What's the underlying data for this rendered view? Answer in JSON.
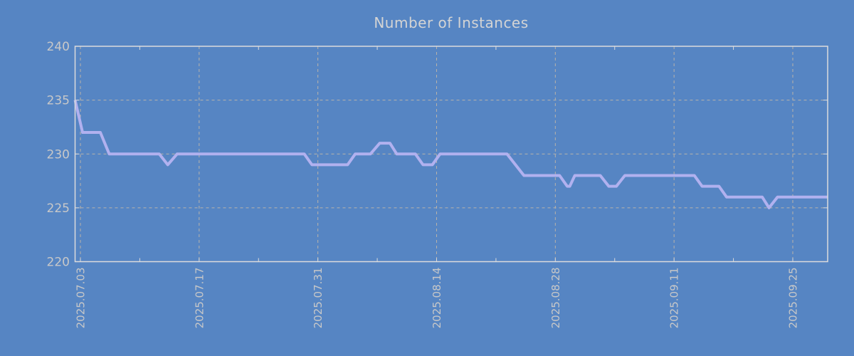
{
  "title": "Number of Instances",
  "colors": {
    "background": "#5685c3",
    "line": "#b1b1ef",
    "grid": "#b9b3aa",
    "frame": "#dcdcdc",
    "tick_label": "#c8c8c8",
    "title_text": "#d4d4d4"
  },
  "chart_data": {
    "type": "line",
    "title": "Number of Instances",
    "xlabel": "",
    "ylabel": "",
    "ylim": [
      220,
      240
    ],
    "y_ticks": [
      220,
      225,
      230,
      235,
      240
    ],
    "y_gridlines": [
      225,
      230,
      235
    ],
    "grid": "dashed",
    "legend": "none",
    "x_ticks": [
      {
        "label": "2025.07.03",
        "day": 0
      },
      {
        "label": "2025.07.17",
        "day": 14
      },
      {
        "label": "2025.07.31",
        "day": 28
      },
      {
        "label": "2025.08.14",
        "day": 42
      },
      {
        "label": "2025.08.28",
        "day": 56
      },
      {
        "label": "2025.09.11",
        "day": 70
      },
      {
        "label": "2025.09.25",
        "day": 84
      }
    ],
    "minor_tick_days": [
      7,
      21,
      35,
      49,
      63,
      77
    ],
    "x_range_days": [
      -0.63,
      88.1
    ],
    "series": [
      {
        "name": "instances",
        "points": [
          [
            -0.63,
            235
          ],
          [
            0.25,
            232
          ],
          [
            2.35,
            232
          ],
          [
            3.4,
            230
          ],
          [
            9.3,
            230
          ],
          [
            10.3,
            229
          ],
          [
            11.4,
            230
          ],
          [
            26.4,
            230
          ],
          [
            27.3,
            229
          ],
          [
            31.5,
            229
          ],
          [
            32.4,
            230
          ],
          [
            34.2,
            230
          ],
          [
            35.3,
            231
          ],
          [
            36.5,
            231
          ],
          [
            37.3,
            230
          ],
          [
            39.5,
            230
          ],
          [
            40.4,
            229
          ],
          [
            41.5,
            229
          ],
          [
            42.4,
            230
          ],
          [
            50.3,
            230
          ],
          [
            52.3,
            228
          ],
          [
            56.5,
            228
          ],
          [
            57.4,
            227
          ],
          [
            57.7,
            227
          ],
          [
            58.3,
            228
          ],
          [
            61.3,
            228
          ],
          [
            62.3,
            227
          ],
          [
            63.2,
            227
          ],
          [
            64.2,
            228
          ],
          [
            72.4,
            228
          ],
          [
            73.3,
            227
          ],
          [
            75.3,
            227
          ],
          [
            76.2,
            226
          ],
          [
            80.4,
            226
          ],
          [
            81.2,
            225
          ],
          [
            82.2,
            226
          ],
          [
            88.1,
            226
          ]
        ]
      }
    ]
  }
}
